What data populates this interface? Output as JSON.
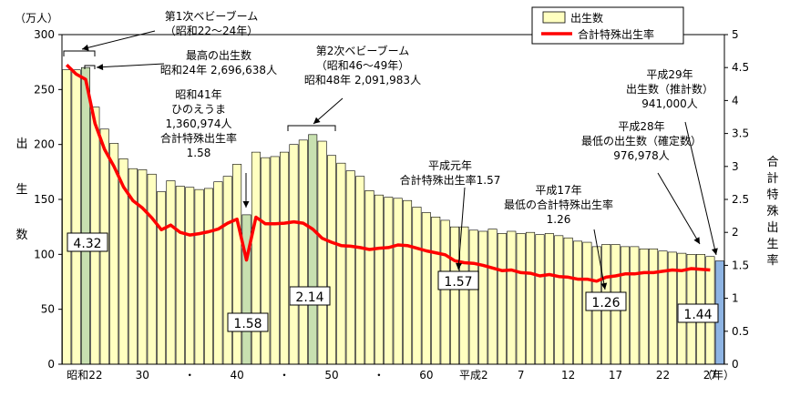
{
  "chart_data": {
    "type": "bar",
    "units_left": "（万人）",
    "units_right_label": "合計特殊出生率",
    "ylabel_left": "出生数",
    "ylabel_right": "合計特殊出生率",
    "x_unit": "（年）",
    "ylim_left": [
      0,
      300
    ],
    "ylim_right": [
      0,
      5
    ],
    "yticks_left": [
      "0",
      "50",
      "100",
      "150",
      "200",
      "250",
      "300"
    ],
    "yticks_right": [
      "0",
      "0.5",
      "1",
      "1.5",
      "2",
      "2.5",
      "3",
      "3.5",
      "4",
      "4.5",
      "5"
    ],
    "x_tick_labels": [
      "昭和22",
      "30",
      "・",
      "40",
      "・",
      "50",
      "・",
      "60",
      "平成2",
      "7",
      "12",
      "17",
      "22",
      "27"
    ],
    "legend": {
      "births": "出生数",
      "tfr": "合計特殊出生率"
    },
    "colors": {
      "bar": "#ffffc0",
      "bar_highlight": "#c8e0b0",
      "bar_last": "#8eb4e3",
      "line": "#ff0000"
    },
    "series": [
      {
        "name": "出生数",
        "unit": "万人",
        "values": [
          268,
          268,
          270,
          234,
          214,
          201,
          187,
          178,
          177,
          173,
          157,
          167,
          162,
          161,
          159,
          160,
          166,
          171,
          182,
          136,
          193,
          188,
          189,
          193,
          200,
          204,
          209,
          203,
          190,
          183,
          176,
          171,
          158,
          154,
          152,
          151,
          149,
          143,
          138,
          134,
          131,
          125,
          125,
          122,
          121,
          123,
          119,
          121,
          119,
          120,
          118,
          119,
          117,
          115,
          112,
          111,
          107,
          109,
          109,
          107,
          107,
          105,
          105,
          103,
          102,
          101,
          100,
          100,
          98,
          94
        ],
        "highlight_indices": [
          2,
          19,
          26
        ],
        "last_index_highlighted": true
      },
      {
        "name": "合計特殊出生率",
        "values": [
          4.54,
          4.4,
          4.32,
          3.65,
          3.26,
          3.0,
          2.69,
          2.48,
          2.37,
          2.22,
          2.04,
          2.11,
          2.0,
          1.96,
          1.98,
          2.01,
          2.05,
          2.14,
          2.2,
          1.58,
          2.23,
          2.13,
          2.13,
          2.14,
          2.16,
          2.14,
          2.05,
          1.91,
          1.85,
          1.8,
          1.79,
          1.77,
          1.74,
          1.76,
          1.77,
          1.81,
          1.8,
          1.76,
          1.72,
          1.69,
          1.66,
          1.57,
          1.54,
          1.53,
          1.5,
          1.46,
          1.42,
          1.43,
          1.39,
          1.38,
          1.34,
          1.36,
          1.33,
          1.32,
          1.29,
          1.29,
          1.26,
          1.32,
          1.34,
          1.37,
          1.37,
          1.39,
          1.39,
          1.41,
          1.43,
          1.42,
          1.45,
          1.44,
          1.43
        ]
      }
    ],
    "value_boxes": [
      "4.32",
      "1.58",
      "2.14",
      "1.57",
      "1.26",
      "1.44"
    ],
    "annotations": [
      {
        "lines": [
          "第1次ベビーブーム",
          "（昭和22～24年）"
        ]
      },
      {
        "lines": [
          "最高の出生数",
          "昭和24年 2,696,638人"
        ]
      },
      {
        "lines": [
          "昭和41年",
          "ひのえうま",
          "1,360,974人",
          "合計特殊出生率",
          "1.58"
        ]
      },
      {
        "lines": [
          "第2次ベビーブーム",
          "（昭和46～49年）",
          "昭和48年 2,091,983人"
        ]
      },
      {
        "lines": [
          "平成元年",
          "合計特殊出生率1.57"
        ]
      },
      {
        "lines": [
          "平成17年",
          "最低の合計特殊出生率",
          "1.26"
        ]
      },
      {
        "lines": [
          "平成28年",
          "最低の出生数（確定数）",
          "976,978人"
        ]
      },
      {
        "lines": [
          "平成29年",
          "出生数（推計数）",
          "941,000人"
        ]
      }
    ]
  }
}
